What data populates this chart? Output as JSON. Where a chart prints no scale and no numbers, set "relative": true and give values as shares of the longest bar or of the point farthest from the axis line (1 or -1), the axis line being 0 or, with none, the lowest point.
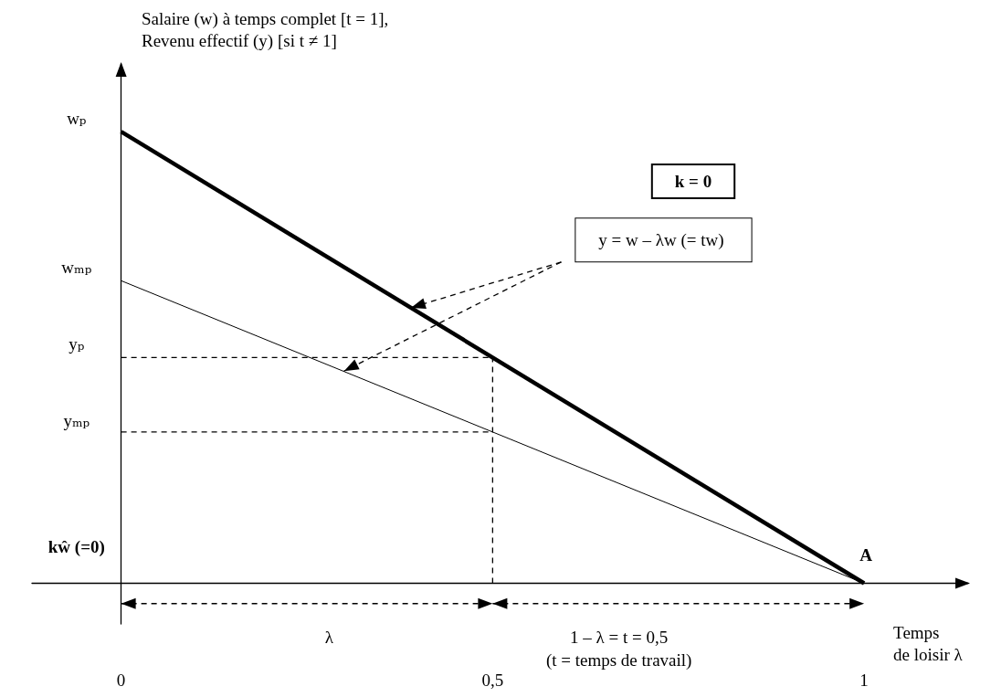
{
  "chart_data": {
    "type": "line",
    "relative": true,
    "marker": "none",
    "xlabel": "Temps\nde loisir λ",
    "ylabel": "Salaire (w) à temps complet [t = 1],\nRevenu effectif (y) [si t ≠ 1]",
    "xlim": [
      -0.12,
      1.14
    ],
    "xticks": [
      0,
      {
        "value": 0.5,
        "label": "0,5"
      },
      1
    ],
    "series": [
      {
        "color": "#000000",
        "x": [
          0,
          1
        ],
        "values": [
          1,
          0
        ],
        "line_style": "solid"
      },
      {
        "color": "#000000",
        "x": [
          0,
          1
        ],
        "values": [
          0.67,
          0
        ],
        "line_style": "solid"
      },
      {
        "color": "#000000",
        "x": [
          0,
          0.5
        ],
        "values": [
          0.5,
          0.5
        ],
        "line_style": "dashed"
      },
      {
        "color": "#000000",
        "x": [
          0.5,
          0.5
        ],
        "values": [
          0,
          0.5
        ],
        "line_style": "dashed"
      },
      {
        "color": "#000000",
        "x": [
          0,
          0.5
        ],
        "values": [
          0.335,
          0.335
        ],
        "line_style": "dashed"
      }
    ],
    "annotations": [
      "wₚ",
      "wₘₚ",
      "yₚ",
      "yₘₚ",
      "kŵ (=0)",
      {
        "text": "A",
        "x": 1,
        "y": 0
      },
      "k = 0",
      "y = w – λw (= tw)",
      "λ",
      "1 – λ = t = 0,5",
      "(t = temps de travail)"
    ]
  }
}
